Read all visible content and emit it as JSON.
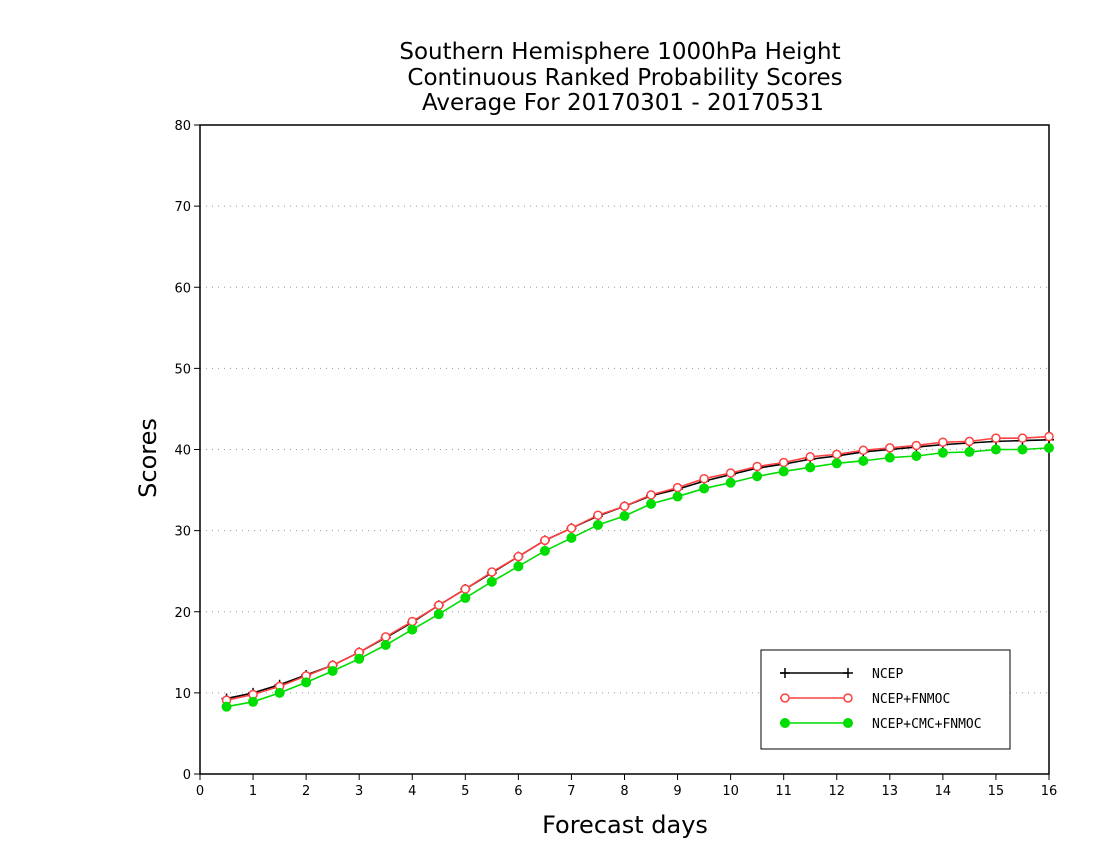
{
  "chart_data": {
    "type": "line",
    "title_lines": [
      "Southern Hemisphere 1000hPa Height",
      "Continuous Ranked Probability Scores",
      "Average For 20170301 - 20170531"
    ],
    "xlabel": "Forecast days",
    "ylabel": "Scores",
    "xlim": [
      0,
      16
    ],
    "ylim": [
      0,
      80
    ],
    "xticks": [
      0,
      1,
      2,
      3,
      4,
      5,
      6,
      7,
      8,
      9,
      10,
      11,
      12,
      13,
      14,
      15,
      16
    ],
    "yticks": [
      0,
      10,
      20,
      30,
      40,
      50,
      60,
      70,
      80
    ],
    "grid": "horizontal-dotted",
    "legend_position": "bottom-right",
    "x": [
      0.5,
      1,
      1.5,
      2,
      2.5,
      3,
      3.5,
      4,
      4.5,
      5,
      5.5,
      6,
      6.5,
      7,
      7.5,
      8,
      8.5,
      9,
      9.5,
      10,
      10.5,
      11,
      11.5,
      12,
      12.5,
      13,
      13.5,
      14,
      14.5,
      15,
      15.5,
      16
    ],
    "series": [
      {
        "name": "NCEP",
        "color": "#000000",
        "marker": "plus",
        "values": [
          9.3,
          10.0,
          11.0,
          12.2,
          13.4,
          15.0,
          16.8,
          18.7,
          20.8,
          22.8,
          24.8,
          26.8,
          28.8,
          30.3,
          31.8,
          33.0,
          34.3,
          35.1,
          36.1,
          36.9,
          37.7,
          38.2,
          38.8,
          39.2,
          39.7,
          40.0,
          40.3,
          40.6,
          40.8,
          41.0,
          41.1,
          41.2
        ]
      },
      {
        "name": "NCEP+FNMOC",
        "color": "#ff4040",
        "marker": "open-circle",
        "values": [
          9.1,
          9.8,
          10.8,
          12.1,
          13.4,
          15.0,
          16.9,
          18.8,
          20.8,
          22.8,
          24.9,
          26.8,
          28.8,
          30.3,
          31.9,
          33.0,
          34.4,
          35.3,
          36.4,
          37.1,
          37.9,
          38.4,
          39.1,
          39.4,
          39.9,
          40.2,
          40.5,
          40.9,
          41.0,
          41.4,
          41.4,
          41.6
        ]
      },
      {
        "name": "NCEP+CMC+FNMOC",
        "color": "#00dd00",
        "marker": "filled-circle",
        "values": [
          8.3,
          8.9,
          10.0,
          11.3,
          12.7,
          14.2,
          15.9,
          17.8,
          19.7,
          21.7,
          23.7,
          25.6,
          27.5,
          29.1,
          30.7,
          31.8,
          33.3,
          34.2,
          35.2,
          35.9,
          36.7,
          37.3,
          37.8,
          38.3,
          38.6,
          39.0,
          39.2,
          39.6,
          39.7,
          40.0,
          40.0,
          40.2
        ]
      }
    ]
  }
}
